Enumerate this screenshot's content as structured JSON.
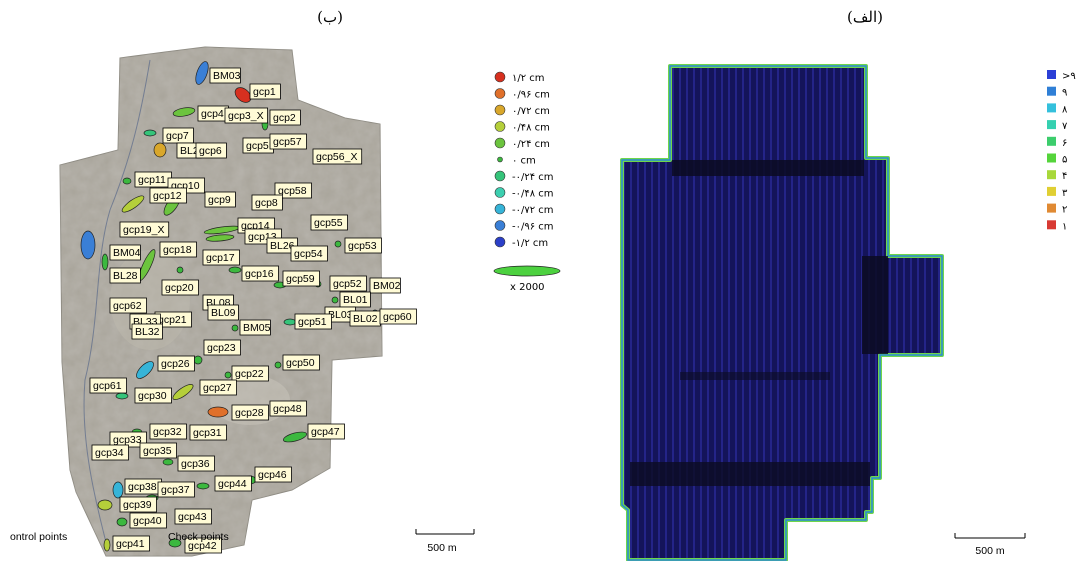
{
  "captions": {
    "left": "(ب)",
    "right": "(الف)"
  },
  "gcp_map": {
    "labels": [
      "BM03",
      "gcp1",
      "gcp4",
      "gcp3_X",
      "gcp2",
      "gcp7",
      "BL2",
      "gcp6",
      "gcp5",
      "gcp57",
      "gcp56_X",
      "gcp11",
      "gcp10",
      "gcp58",
      "gcp12",
      "gcp9",
      "gcp8",
      "gcp55",
      "gcp19_X",
      "gcp14",
      "gcp13",
      "BL26",
      "gcp53",
      "BM04",
      "gcp18",
      "gcp54",
      "gcp17",
      "BL28",
      "gcp16",
      "gcp59",
      "gcp52",
      "BM02",
      "gcp20",
      "BL01",
      "gcp62",
      "BL08",
      "BL09",
      "gcp21",
      "BL03",
      "BL02",
      "gcp60",
      "gcp51",
      "BL33",
      "BM05",
      "BL32",
      "gcp23",
      "gcp26",
      "gcp50",
      "gcp22",
      "gcp61",
      "gcp27",
      "gcp30",
      "gcp48",
      "gcp28",
      "gcp31",
      "gcp32",
      "gcp47",
      "gcp33",
      "gcp34",
      "gcp35",
      "gcp36",
      "gcp46",
      "gcp44",
      "gcp38",
      "gcp37",
      "gcp39",
      "gcp43",
      "gcp40",
      "gcp41",
      "gcp42"
    ],
    "legend": [
      {
        "label": "۱/۲ cm",
        "color": "#d7301f"
      },
      {
        "label": "۰/۹۶ cm",
        "color": "#e0702a"
      },
      {
        "label": "۰/۷۲ cm",
        "color": "#d9a72b"
      },
      {
        "label": "۰/۴۸ cm",
        "color": "#b5cf3a"
      },
      {
        "label": "۰/۲۴ cm",
        "color": "#6cc43e"
      },
      {
        "label": "۰ cm",
        "color": "#3cb83f"
      },
      {
        "label": "-۰/۲۴ cm",
        "color": "#35c47a"
      },
      {
        "label": "-۰/۴۸ cm",
        "color": "#3ccfb0"
      },
      {
        "label": "-۰/۷۲ cm",
        "color": "#36b4d8"
      },
      {
        "label": "-۰/۹۶ cm",
        "color": "#3a7fd6"
      },
      {
        "label": "-۱/۲ cm",
        "color": "#2b3fc8"
      }
    ],
    "scale_factor": "x 2000",
    "control_points": "ontrol points",
    "check_points": "Check points",
    "scale_bar": "500 m"
  },
  "overlap_map": {
    "legend": [
      {
        "label": ">۹",
        "color": "#2b3fd6"
      },
      {
        "label": "۹",
        "color": "#2f7fd6"
      },
      {
        "label": "۸",
        "color": "#34c0dc"
      },
      {
        "label": "۷",
        "color": "#35d0b0"
      },
      {
        "label": "۶",
        "color": "#3ccd6c"
      },
      {
        "label": "۵",
        "color": "#55d43b"
      },
      {
        "label": "۴",
        "color": "#a8d83a"
      },
      {
        "label": "۳",
        "color": "#e0cf33"
      },
      {
        "label": "۲",
        "color": "#e08a33"
      },
      {
        "label": "۱",
        "color": "#d83a33"
      }
    ],
    "scale_bar": "500 m"
  }
}
